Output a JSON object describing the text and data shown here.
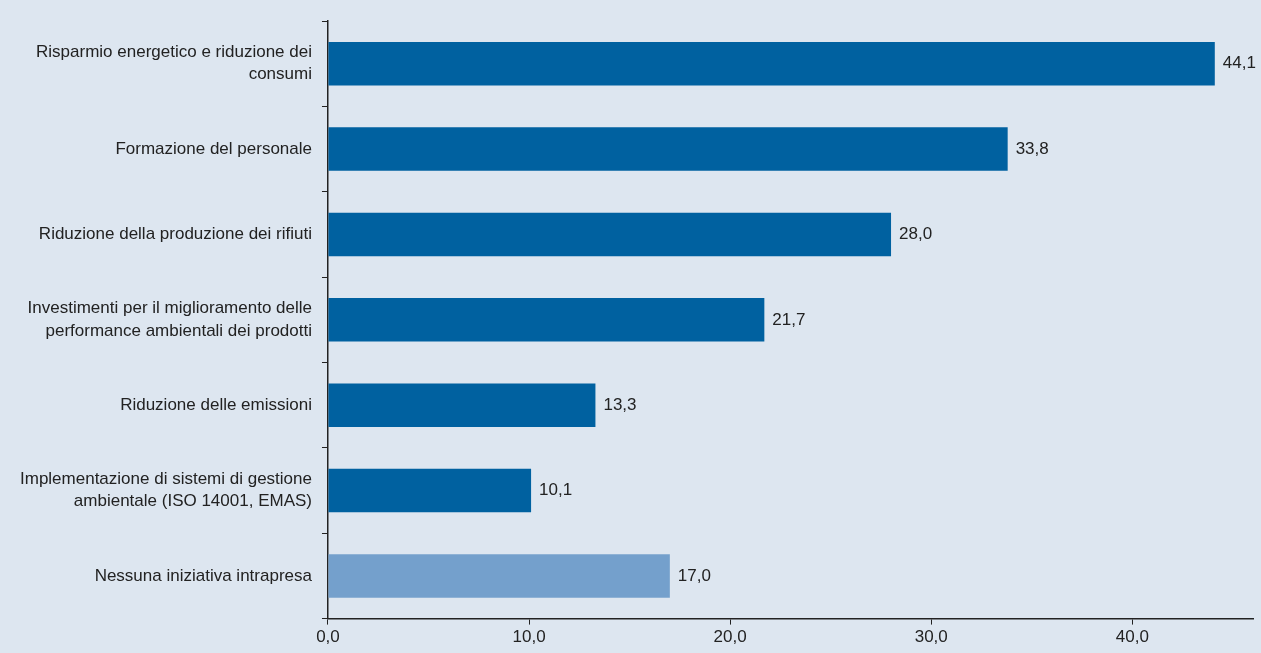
{
  "chart_data": {
    "type": "bar",
    "orientation": "horizontal",
    "categories": [
      "Risparmio energetico e riduzione dei consumi",
      "Formazione del personale",
      "Riduzione della produzione dei rifiuti",
      "Investimenti per il miglioramento delle performance ambientali dei prodotti",
      "Riduzione delle emissioni",
      "Implementazione di sistemi di gestione ambientale (ISO 14001, EMAS)",
      "Nessuna iniziativa intrapresa"
    ],
    "values": [
      44.1,
      33.8,
      28.0,
      21.7,
      13.3,
      10.1,
      17.0
    ],
    "value_labels": [
      "44,1",
      "33,8",
      "28,0",
      "21,7",
      "13,3",
      "10,1",
      "17,0"
    ],
    "colors": [
      "#0061a0",
      "#0061a0",
      "#0061a0",
      "#0061a0",
      "#0061a0",
      "#0061a0",
      "#74a0cc"
    ],
    "xlim": [
      0,
      46
    ],
    "xticks": [
      {
        "value": 0,
        "label": "0,0"
      },
      {
        "value": 10,
        "label": "10,0"
      },
      {
        "value": 20,
        "label": "20,0"
      },
      {
        "value": 30,
        "label": "30,0"
      },
      {
        "value": 40,
        "label": "40,0"
      }
    ],
    "grid": false,
    "legend": false
  }
}
